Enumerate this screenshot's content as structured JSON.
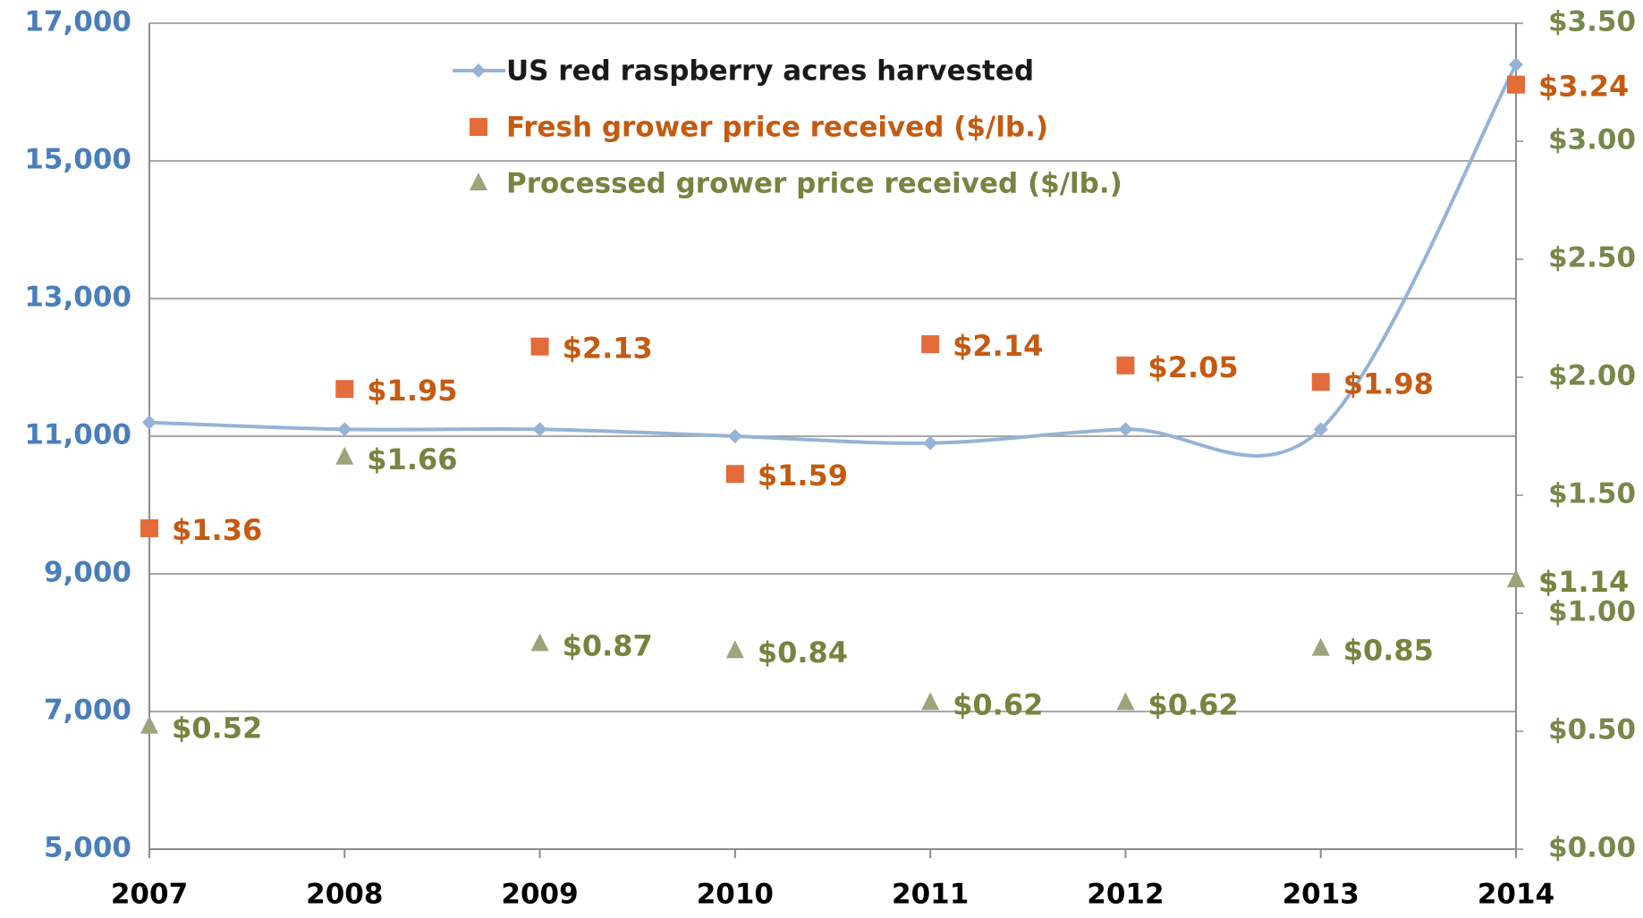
{
  "chart_data": {
    "type": "line",
    "categories": [
      "2007",
      "2008",
      "2009",
      "2010",
      "2011",
      "2012",
      "2013",
      "2014"
    ],
    "series": [
      {
        "name": "US red raspberry acres harvested",
        "color": "#95b3d7",
        "label_color": "#1a1a1a",
        "marker": "diamond",
        "axis": "y",
        "values": [
          11200,
          11100,
          11100,
          11000,
          10900,
          11100,
          11100,
          16400
        ]
      },
      {
        "name": "Fresh grower price received ($/lb.)",
        "color": "#e46c3a",
        "label_color": "#c55a11",
        "marker": "square",
        "axis": "y2",
        "values": [
          1.36,
          1.95,
          2.13,
          1.59,
          2.14,
          2.05,
          1.98,
          3.24
        ],
        "value_labels": [
          "$1.36",
          "$1.95",
          "$2.13",
          "$1.59",
          "$2.14",
          "$2.05",
          "$1.98",
          "$3.24"
        ]
      },
      {
        "name": "Processed grower price received ($/lb.)",
        "color": "#9ba57a",
        "label_color": "#76843f",
        "marker": "triangle",
        "axis": "y2",
        "values": [
          0.52,
          1.66,
          0.87,
          0.84,
          0.62,
          0.62,
          0.85,
          1.14
        ],
        "value_labels": [
          "$0.52",
          "$1.66",
          "$0.87",
          "$0.84",
          "$0.62",
          "$0.62",
          "$0.85",
          "$1.14"
        ]
      }
    ],
    "ylim": [
      5000,
      17000
    ],
    "yticks": [
      {
        "value": 5000,
        "label": "5,000"
      },
      {
        "value": 7000,
        "label": "7,000"
      },
      {
        "value": 9000,
        "label": "9,000"
      },
      {
        "value": 11000,
        "label": "11,000"
      },
      {
        "value": 13000,
        "label": "13,000"
      },
      {
        "value": 15000,
        "label": "15,000"
      },
      {
        "value": 17000,
        "label": "17,000"
      }
    ],
    "y2lim": [
      0,
      3.5
    ],
    "y2ticks": [
      {
        "value": 0,
        "label": "$0.00"
      },
      {
        "value": 0.5,
        "label": "$0.50"
      },
      {
        "value": 1,
        "label": "$1.00"
      },
      {
        "value": 1.5,
        "label": "$1.50"
      },
      {
        "value": 2,
        "label": "$2.00"
      },
      {
        "value": 2.5,
        "label": "$2.50"
      },
      {
        "value": 3,
        "label": "$3.00"
      },
      {
        "value": 3.5,
        "label": "$3.50"
      }
    ],
    "ytick_color": "#4a7ebb",
    "y2tick_color": "#77894a",
    "grid": true,
    "legend": "upper left",
    "smooth": true
  }
}
